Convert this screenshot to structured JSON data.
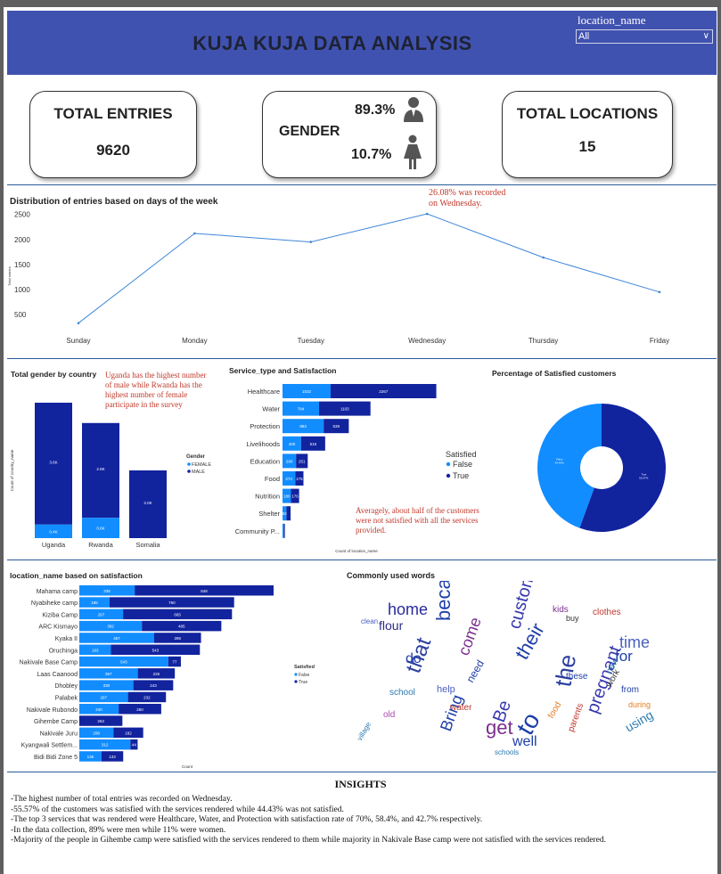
{
  "header": {
    "title": "KUJA KUJA DATA ANALYSIS",
    "slicer_label": "location_name",
    "slicer_value": "All"
  },
  "kpis": {
    "total_entries_label": "TOTAL ENTRIES",
    "total_entries_value": "9620",
    "gender_label": "GENDER",
    "male_pct": "89.3%",
    "female_pct": "10.7%",
    "total_locations_label": "TOTAL LOCATIONS",
    "total_locations_value": "15"
  },
  "colors": {
    "header_bg": "#4052b0",
    "dark_blue": "#12239e",
    "light_blue": "#118dff",
    "line": "#3e86d8",
    "note_red": "#c0392b"
  },
  "chart_data": [
    {
      "type": "line",
      "title": "Distribution of entries based on days of the week",
      "ylabel": "Total entries",
      "categories": [
        "Sunday",
        "Monday",
        "Tuesday",
        "Wednesday",
        "Thursday",
        "Friday"
      ],
      "values": [
        330,
        2120,
        1950,
        2510,
        1640,
        950
      ],
      "yticks": [
        "2500",
        "2000",
        "1500",
        "1000",
        "500"
      ],
      "ylim": [
        200,
        2600
      ],
      "annotation": "26.08% was recorded on Wednesday."
    },
    {
      "type": "bar",
      "title": "Total gender by country",
      "ylabel": "Count of country_name",
      "categories": [
        "Uganda",
        "Rwanda",
        "Somalia"
      ],
      "legend_title": "Gender",
      "series": [
        {
          "name": "FEMALE",
          "values": [
            0.4,
            0.6,
            0.0
          ],
          "labels": [
            "0.4K",
            "0.6K",
            ""
          ]
        },
        {
          "name": "MALE",
          "values": [
            3.6,
            2.8,
            2.0
          ],
          "labels": [
            "3.6K",
            "2.8K",
            "2.0K"
          ]
        }
      ],
      "annotation": "Uganda has the highest number of male while Rwanda has the highest number of female participate in the survey"
    },
    {
      "type": "bar",
      "title": "Service_type and Satisfaction",
      "xlabel": "Count of location_name",
      "categories": [
        "Healthcare",
        "Water",
        "Protection",
        "Livelihoods",
        "Education",
        "Food",
        "Nutrition",
        "Shelter",
        "Community P..."
      ],
      "legend_title": "Satisfied",
      "series": [
        {
          "name": "False",
          "values": [
            1032,
            784,
            883,
            400,
            290,
            274,
            180,
            83,
            30
          ],
          "labels": [
            "1032",
            "784",
            "883",
            "400",
            "290",
            "274",
            "180",
            "83",
            ""
          ]
        },
        {
          "name": "True",
          "values": [
            2267,
            1103,
            539,
            515,
            251,
            175,
            176,
            90,
            20
          ],
          "labels": [
            "2267",
            "1103",
            "539",
            "515",
            "251",
            "175",
            "176",
            "",
            ""
          ]
        }
      ],
      "annotation": "Averagely, about half of the customers were not satisfied with all the services provided."
    },
    {
      "type": "pie",
      "title": "Percentage of Satisfied customers",
      "categories": [
        "False",
        "True"
      ],
      "values": [
        44.43,
        55.57
      ],
      "labels": [
        "False\n44.43%",
        "True\n55.57%"
      ]
    },
    {
      "type": "bar",
      "title": "location_name based on satisfaction",
      "xlabel": "Count",
      "categories": [
        "Mahama camp",
        "Nyabiheke camp",
        "Kiziba Camp",
        "ARC Kismayo",
        "Kyaka II",
        "Oruchinga",
        "Nakivale Base Camp",
        "Laas Caanood",
        "Dhobley",
        "Palabek",
        "Nakivale Rubondo",
        "Gihembe Camp",
        "Nakivale Juru",
        "Kyangwali Settlem...",
        "Bidi Bidi Zone 5"
      ],
      "legend_title": "Satisfied",
      "series": [
        {
          "name": "False",
          "values": [
            338,
            185,
            267,
            382,
            457,
            193,
            543,
            357,
            330,
            297,
            240,
            0,
            208,
            312,
            135
          ],
          "labels": [
            "338",
            "185",
            "267",
            "382",
            "457",
            "193",
            "543",
            "357",
            "330",
            "297",
            "240",
            "",
            "208",
            "312",
            "135"
          ]
        },
        {
          "name": "True",
          "values": [
            848,
            760,
            665,
            485,
            286,
            543,
            77,
            226,
            243,
            232,
            260,
            263,
            182,
            44,
            133
          ],
          "labels": [
            "848",
            "760",
            "665",
            "485",
            "286",
            "543",
            "77",
            "226",
            "243",
            "232",
            "260",
            "263",
            "182",
            "44",
            "133"
          ]
        }
      ]
    }
  ],
  "wordcloud": {
    "title": "Commonly used words",
    "words": [
      {
        "t": "because",
        "c": "#1f3fa8"
      },
      {
        "t": "home",
        "c": "#2a2aa0"
      },
      {
        "t": "their",
        "c": "#1f3fa8"
      },
      {
        "t": "customer",
        "c": "#3a3ab0"
      },
      {
        "t": "the",
        "c": "#2b3fa0"
      },
      {
        "t": "to",
        "c": "#1f3fa8"
      },
      {
        "t": "Be",
        "c": "#3a3ab0"
      },
      {
        "t": "get",
        "c": "#7b2f8f"
      },
      {
        "t": "Bring",
        "c": "#1f3fa8"
      },
      {
        "t": "that",
        "c": "#2b3fa0"
      },
      {
        "t": "time",
        "c": "#4a5fc0"
      },
      {
        "t": "for",
        "c": "#1f3fa8"
      },
      {
        "t": "pregnant",
        "c": "#3a3ab0"
      },
      {
        "t": "come",
        "c": "#7b2f8f"
      },
      {
        "t": "flour",
        "c": "#2b2b8a"
      },
      {
        "t": "do",
        "c": "#1f3fa8"
      },
      {
        "t": "water",
        "c": "#c0392b"
      },
      {
        "t": "clean",
        "c": "#4a5fc0"
      },
      {
        "t": "school",
        "c": "#2a7ab0"
      },
      {
        "t": "clothes",
        "c": "#c0392b"
      },
      {
        "t": "buy",
        "c": "#333"
      },
      {
        "t": "kids",
        "c": "#7b2f8f"
      },
      {
        "t": "food",
        "c": "#e67e22"
      },
      {
        "t": "using",
        "c": "#2a7ab0"
      },
      {
        "t": "old",
        "c": "#b04ab0"
      },
      {
        "t": "well",
        "c": "#1f3fa8"
      },
      {
        "t": "schools",
        "c": "#2a7ab0"
      },
      {
        "t": "need",
        "c": "#1f3fa8"
      },
      {
        "t": "help",
        "c": "#4a5fc0"
      },
      {
        "t": "work",
        "c": "#333"
      },
      {
        "t": "parents",
        "c": "#c0392b"
      },
      {
        "t": "village",
        "c": "#2a7ab0"
      },
      {
        "t": "these",
        "c": "#1f3fa8"
      },
      {
        "t": "new",
        "c": "#2a7ab0"
      },
      {
        "t": "from",
        "c": "#1f3fa8"
      },
      {
        "t": "during",
        "c": "#e67e22"
      }
    ]
  },
  "insights": {
    "title": "INSIGHTS",
    "lines": [
      "-The highest number of total entries was recorded on Wednesday.",
      "-55.57% of the customers was satisfied with the services rendered while 44.43% was not satisfied.",
      "-The top 3 services that was rendered were Healthcare, Water, and Protection with satisfaction rate of 70%, 58.4%, and 42.7% respectively.",
      "-In the data collection, 89% were men while 11% were women.",
      "-Majority of the people in Gihembe camp were satisfied with the services rendered to them while majority in Nakivale Base camp were not satisfied with the services rendered."
    ]
  }
}
